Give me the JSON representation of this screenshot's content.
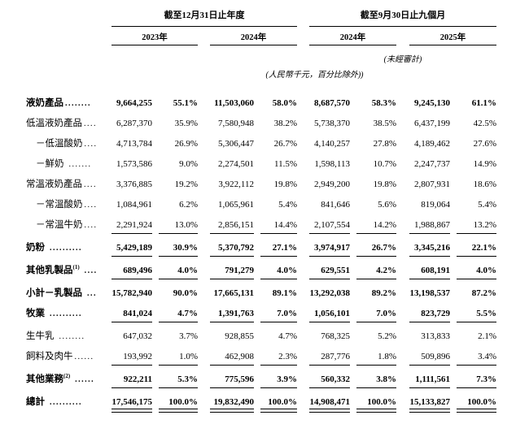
{
  "colors": {
    "text": "#000000",
    "background": "#ffffff",
    "rule": "#000000"
  },
  "header": {
    "group1": {
      "title": "截至12月31日止年度",
      "years": [
        "2023年",
        "2024年"
      ]
    },
    "group2": {
      "title": "截至9月30日止九個月",
      "years": [
        "2024年",
        "2025年"
      ]
    },
    "unaudited_note": "(未經審計)",
    "unit_note": "(人民幣千元，百分比除外))"
  },
  "table": {
    "rows": [
      {
        "label": "液奶產品",
        "sup": "",
        "leader": "........",
        "indent": false,
        "bold": true,
        "underline": "none",
        "values": [
          "9,664,255",
          "55.1%",
          "11,503,060",
          "58.0%",
          "8,687,570",
          "58.3%",
          "9,245,130",
          "61.1%"
        ]
      },
      {
        "label": "低溫液奶產品",
        "sup": "",
        "leader": "....",
        "indent": false,
        "bold": false,
        "underline": "none",
        "values": [
          "6,287,370",
          "35.9%",
          "7,580,948",
          "38.2%",
          "5,738,370",
          "38.5%",
          "6,437,199",
          "42.5%"
        ]
      },
      {
        "label": "－低溫酸奶",
        "sup": "",
        "leader": "....",
        "indent": true,
        "bold": false,
        "underline": "none",
        "values": [
          "4,713,784",
          "26.9%",
          "5,306,447",
          "26.7%",
          "4,140,257",
          "27.8%",
          "4,189,462",
          "27.6%"
        ]
      },
      {
        "label": "－鮮奶",
        "sup": "",
        "leader": " .......",
        "indent": true,
        "bold": false,
        "underline": "none",
        "values": [
          "1,573,586",
          "9.0%",
          "2,274,501",
          "11.5%",
          "1,598,113",
          "10.7%",
          "2,247,737",
          "14.9%"
        ]
      },
      {
        "label": "常溫液奶產品",
        "sup": "",
        "leader": "....",
        "indent": false,
        "bold": false,
        "underline": "none",
        "values": [
          "3,376,885",
          "19.2%",
          "3,922,112",
          "19.8%",
          "2,949,200",
          "19.8%",
          "2,807,931",
          "18.6%"
        ]
      },
      {
        "label": "－常溫酸奶",
        "sup": "",
        "leader": "....",
        "indent": true,
        "bold": false,
        "underline": "none",
        "values": [
          "1,084,961",
          "6.2%",
          "1,065,961",
          "5.4%",
          "841,646",
          "5.6%",
          "819,064",
          "5.4%"
        ]
      },
      {
        "label": "－常溫牛奶",
        "sup": "",
        "leader": "....",
        "indent": true,
        "bold": false,
        "underline": "single",
        "values": [
          "2,291,924",
          "13.0%",
          "2,856,151",
          "14.4%",
          "2,107,554",
          "14.2%",
          "1,988,867",
          "13.2%"
        ]
      },
      {
        "label": "奶粉",
        "sup": "",
        "leader": " ..........",
        "indent": false,
        "bold": true,
        "underline": "single",
        "values": [
          "5,429,189",
          "30.9%",
          "5,370,792",
          "27.1%",
          "3,974,917",
          "26.7%",
          "3,345,216",
          "22.1%"
        ]
      },
      {
        "label": "其他乳製品",
        "sup": "(1)",
        "leader": " ....",
        "indent": false,
        "bold": true,
        "underline": "single",
        "values": [
          "689,496",
          "4.0%",
          "791,279",
          "4.0%",
          "629,551",
          "4.2%",
          "608,191",
          "4.0%"
        ]
      },
      {
        "label": "小計－乳製品",
        "sup": "",
        "leader": " ...",
        "indent": false,
        "bold": true,
        "underline": "none",
        "values": [
          "15,782,940",
          "90.0%",
          "17,665,131",
          "89.1%",
          "13,292,038",
          "89.2%",
          "13,198,537",
          "87.2%"
        ]
      },
      {
        "label": "牧業",
        "sup": "",
        "leader": " ..........",
        "indent": false,
        "bold": true,
        "underline": "single",
        "values": [
          "841,024",
          "4.7%",
          "1,391,763",
          "7.0%",
          "1,056,101",
          "7.0%",
          "823,729",
          "5.5%"
        ]
      },
      {
        "label": "生牛乳",
        "sup": "",
        "leader": " ........",
        "indent": false,
        "bold": false,
        "underline": "none",
        "values": [
          "647,032",
          "3.7%",
          "928,855",
          "4.7%",
          "768,325",
          "5.2%",
          "313,833",
          "2.1%"
        ]
      },
      {
        "label": "飼料及肉牛",
        "sup": "",
        "leader": "......",
        "indent": false,
        "bold": false,
        "underline": "single",
        "values": [
          "193,992",
          "1.0%",
          "462,908",
          "2.3%",
          "287,776",
          "1.8%",
          "509,896",
          "3.4%"
        ]
      },
      {
        "label": "其他業務",
        "sup": "(2)",
        "leader": " ......",
        "indent": false,
        "bold": true,
        "underline": "single",
        "values": [
          "922,211",
          "5.3%",
          "775,596",
          "3.9%",
          "560,332",
          "3.8%",
          "1,111,561",
          "7.3%"
        ]
      },
      {
        "label": "總計",
        "sup": "",
        "leader": " ..........",
        "indent": false,
        "bold": true,
        "underline": "double",
        "values": [
          "17,546,175",
          "100.0%",
          "19,832,490",
          "100.0%",
          "14,908,471",
          "100.0%",
          "15,133,827",
          "100.0%"
        ]
      }
    ]
  }
}
